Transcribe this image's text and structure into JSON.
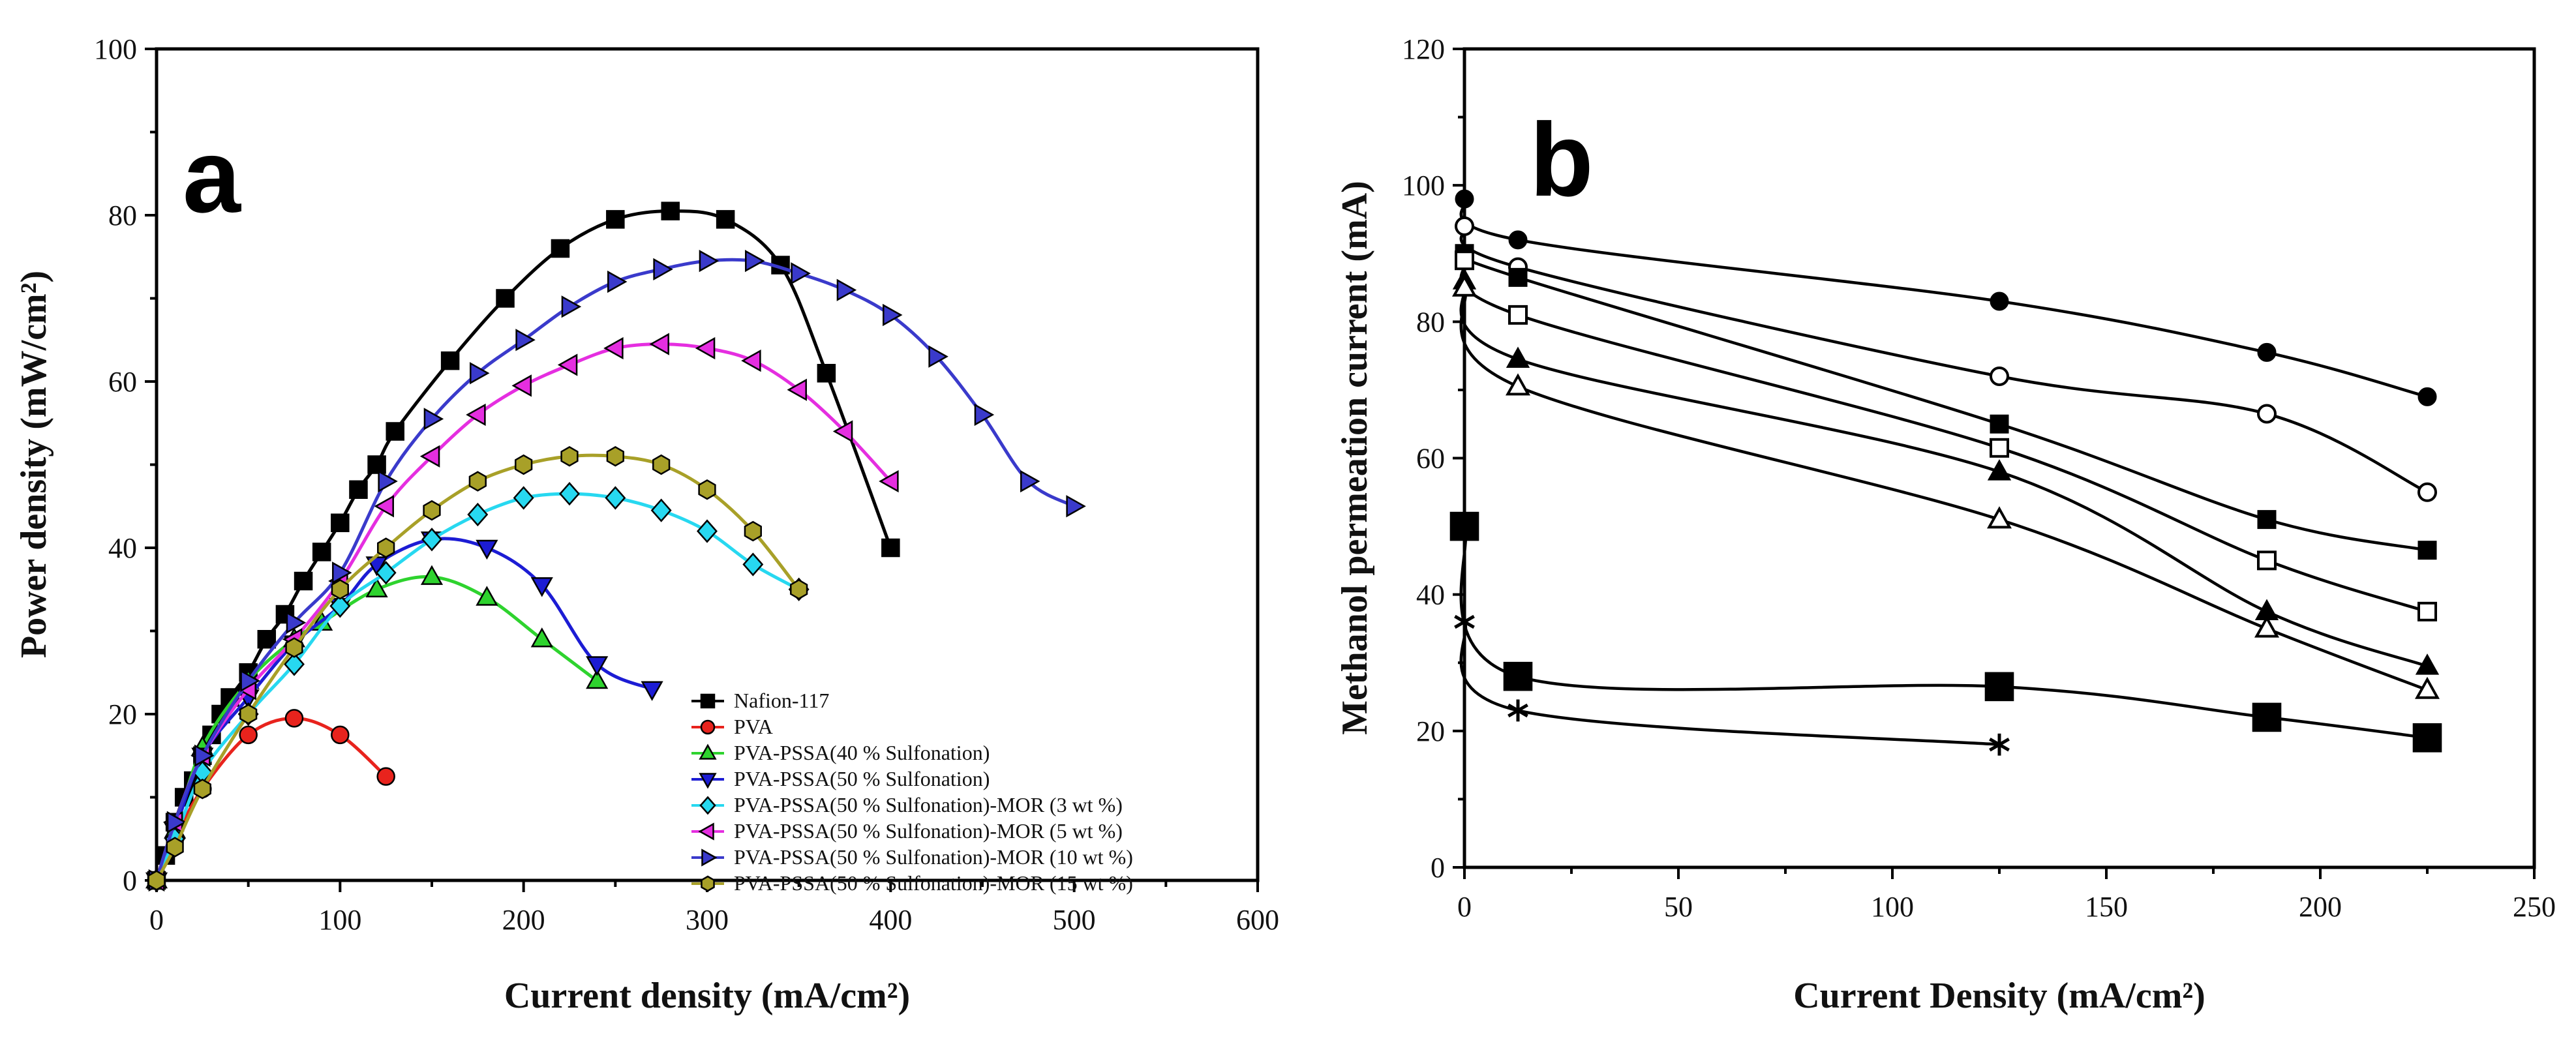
{
  "chart_data": [
    {
      "type": "line",
      "panel_label": "a",
      "xlabel": "Current density (mA/cm²)",
      "ylabel": "Power density (mW/cm²)",
      "xlim": [
        0,
        600
      ],
      "ylim": [
        0,
        100
      ],
      "xticks": [
        0,
        100,
        200,
        300,
        400,
        500,
        600
      ],
      "yticks": [
        0,
        20,
        40,
        60,
        80,
        100
      ],
      "legend_position": "bottom-right",
      "series": [
        {
          "name": "Nafion-117",
          "color": "#000000",
          "marker": "square",
          "points": [
            [
              0,
              0
            ],
            [
              5,
              3
            ],
            [
              10,
              7
            ],
            [
              15,
              10
            ],
            [
              20,
              12
            ],
            [
              25,
              15
            ],
            [
              30,
              17.5
            ],
            [
              35,
              20
            ],
            [
              40,
              22
            ],
            [
              50,
              25
            ],
            [
              60,
              29
            ],
            [
              70,
              32
            ],
            [
              80,
              36
            ],
            [
              90,
              39.5
            ],
            [
              100,
              43
            ],
            [
              110,
              47
            ],
            [
              120,
              50
            ],
            [
              130,
              54
            ],
            [
              160,
              62.5
            ],
            [
              190,
              70
            ],
            [
              220,
              76
            ],
            [
              250,
              79.5
            ],
            [
              280,
              80.5
            ],
            [
              310,
              79.5
            ],
            [
              340,
              74
            ],
            [
              365,
              61
            ],
            [
              400,
              40
            ]
          ]
        },
        {
          "name": "PVA",
          "color": "#e8231d",
          "marker": "circle",
          "points": [
            [
              0,
              0
            ],
            [
              10,
              5
            ],
            [
              25,
              11
            ],
            [
              50,
              17.5
            ],
            [
              75,
              19.5
            ],
            [
              100,
              17.5
            ],
            [
              125,
              12.5
            ]
          ]
        },
        {
          "name": "PVA-PSSA(40 % Sulfonation)",
          "color": "#2ed32e",
          "marker": "triangle-up",
          "points": [
            [
              0,
              0
            ],
            [
              10,
              6
            ],
            [
              25,
              16
            ],
            [
              50,
              24
            ],
            [
              75,
              29
            ],
            [
              90,
              31
            ],
            [
              120,
              35
            ],
            [
              150,
              36.5
            ],
            [
              180,
              34
            ],
            [
              210,
              29
            ],
            [
              240,
              24
            ]
          ]
        },
        {
          "name": "PVA-PSSA(50 % Sulfonation)",
          "color": "#1c1cd4",
          "marker": "triangle-down",
          "points": [
            [
              0,
              0
            ],
            [
              10,
              6
            ],
            [
              25,
              15
            ],
            [
              50,
              22
            ],
            [
              75,
              28.5
            ],
            [
              100,
              33
            ],
            [
              120,
              38
            ],
            [
              150,
              41
            ],
            [
              180,
              40
            ],
            [
              210,
              35.5
            ],
            [
              240,
              26
            ],
            [
              270,
              23
            ]
          ]
        },
        {
          "name": "PVA-PSSA(50 % Sulfonation)-MOR (3 wt %)",
          "color": "#27d8f0",
          "marker": "diamond",
          "points": [
            [
              0,
              0
            ],
            [
              10,
              5
            ],
            [
              25,
              13
            ],
            [
              50,
              20
            ],
            [
              75,
              26
            ],
            [
              100,
              33
            ],
            [
              125,
              37
            ],
            [
              150,
              41
            ],
            [
              175,
              44
            ],
            [
              200,
              46
            ],
            [
              225,
              46.5
            ],
            [
              250,
              46
            ],
            [
              275,
              44.5
            ],
            [
              300,
              42
            ],
            [
              325,
              38
            ],
            [
              350,
              35
            ]
          ]
        },
        {
          "name": "PVA-PSSA(50 % Sulfonation)-MOR (5 wt %)",
          "color": "#e52ee0",
          "marker": "triangle-left",
          "points": [
            [
              0,
              0
            ],
            [
              10,
              7
            ],
            [
              25,
              15
            ],
            [
              50,
              23
            ],
            [
              75,
              29
            ],
            [
              100,
              36
            ],
            [
              125,
              45
            ],
            [
              150,
              51
            ],
            [
              175,
              56
            ],
            [
              200,
              59.5
            ],
            [
              225,
              62
            ],
            [
              250,
              64
            ],
            [
              275,
              64.5
            ],
            [
              300,
              64
            ],
            [
              325,
              62.5
            ],
            [
              350,
              59
            ],
            [
              375,
              54
            ],
            [
              400,
              48
            ]
          ]
        },
        {
          "name": "PVA-PSSA(50 % Sulfonation)-MOR (10 wt %)",
          "color": "#3a3acb",
          "marker": "triangle-right",
          "points": [
            [
              0,
              0
            ],
            [
              10,
              7
            ],
            [
              25,
              15
            ],
            [
              50,
              24
            ],
            [
              75,
              31
            ],
            [
              100,
              37
            ],
            [
              125,
              48
            ],
            [
              150,
              55.5
            ],
            [
              175,
              61
            ],
            [
              200,
              65
            ],
            [
              225,
              69
            ],
            [
              250,
              72
            ],
            [
              275,
              73.5
            ],
            [
              300,
              74.5
            ],
            [
              325,
              74.5
            ],
            [
              350,
              73
            ],
            [
              375,
              71
            ],
            [
              400,
              68
            ],
            [
              425,
              63
            ],
            [
              450,
              56
            ],
            [
              475,
              48
            ],
            [
              500,
              45
            ]
          ]
        },
        {
          "name": "PVA-PSSA(50 % Sulfonation)-MOR (15 wt %)",
          "color": "#a8a028",
          "marker": "hexagon",
          "points": [
            [
              0,
              0
            ],
            [
              10,
              4
            ],
            [
              25,
              11
            ],
            [
              50,
              20
            ],
            [
              75,
              28
            ],
            [
              100,
              35
            ],
            [
              125,
              40
            ],
            [
              150,
              44.5
            ],
            [
              175,
              48
            ],
            [
              200,
              50
            ],
            [
              225,
              51
            ],
            [
              250,
              51
            ],
            [
              275,
              50
            ],
            [
              300,
              47
            ],
            [
              325,
              42
            ],
            [
              350,
              35
            ]
          ]
        }
      ]
    },
    {
      "type": "line",
      "panel_label": "b",
      "xlabel": "Current Density (mA/cm²)",
      "ylabel": "Methanol permeation current (mA)",
      "xlim": [
        0,
        250
      ],
      "ylim": [
        0,
        120
      ],
      "xticks": [
        0,
        50,
        100,
        150,
        200,
        250
      ],
      "yticks": [
        0,
        20,
        40,
        60,
        80,
        100,
        120
      ],
      "series": [
        {
          "name": "filled-circle",
          "color": "#000000",
          "marker": "circle-filled",
          "points": [
            [
              0,
              98
            ],
            [
              12.5,
              92
            ],
            [
              125,
              83
            ],
            [
              187.5,
              75.5
            ],
            [
              225,
              69
            ]
          ]
        },
        {
          "name": "open-circle",
          "color": "#000000",
          "marker": "circle-open",
          "points": [
            [
              0,
              94
            ],
            [
              12.5,
              88
            ],
            [
              125,
              72
            ],
            [
              187.5,
              66.5
            ],
            [
              225,
              55
            ]
          ]
        },
        {
          "name": "filled-square",
          "color": "#000000",
          "marker": "square-filled",
          "points": [
            [
              0,
              90
            ],
            [
              12.5,
              86.5
            ],
            [
              125,
              65
            ],
            [
              187.5,
              51
            ],
            [
              225,
              46.5
            ]
          ]
        },
        {
          "name": "open-square",
          "color": "#000000",
          "marker": "square-open",
          "points": [
            [
              0,
              89
            ],
            [
              12.5,
              81
            ],
            [
              125,
              61.5
            ],
            [
              187.5,
              45
            ],
            [
              225,
              37.5
            ]
          ]
        },
        {
          "name": "filled-triangle",
          "color": "#000000",
          "marker": "triangle-filled",
          "points": [
            [
              0,
              86
            ],
            [
              12.5,
              74.5
            ],
            [
              125,
              58
            ],
            [
              187.5,
              37.5
            ],
            [
              225,
              29.5
            ]
          ]
        },
        {
          "name": "open-triangle",
          "color": "#000000",
          "marker": "triangle-open",
          "points": [
            [
              0,
              85
            ],
            [
              12.5,
              70.5
            ],
            [
              125,
              51
            ],
            [
              187.5,
              35
            ],
            [
              225,
              26
            ]
          ]
        },
        {
          "name": "big-square",
          "color": "#000000",
          "marker": "square-big",
          "points": [
            [
              0,
              50
            ],
            [
              12.5,
              28
            ],
            [
              125,
              26.5
            ],
            [
              187.5,
              22
            ],
            [
              225,
              19
            ]
          ]
        },
        {
          "name": "star",
          "color": "#000000",
          "marker": "asterisk",
          "points": [
            [
              0,
              36
            ],
            [
              12.5,
              23
            ],
            [
              125,
              18
            ]
          ]
        }
      ]
    }
  ]
}
